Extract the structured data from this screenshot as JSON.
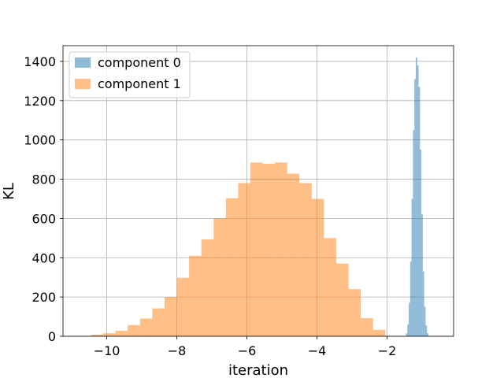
{
  "chart_data": {
    "type": "bar",
    "title": "",
    "xlabel": "iteration",
    "ylabel": "KL",
    "xlim": [
      -11.25,
      -0.1
    ],
    "ylim": [
      0,
      1480
    ],
    "x_ticks": [
      -10,
      -8,
      -6,
      -4,
      -2
    ],
    "x_tick_labels": [
      "−10",
      "−8",
      "−6",
      "−4",
      "−2"
    ],
    "y_ticks": [
      0,
      200,
      400,
      600,
      800,
      1000,
      1200,
      1400
    ],
    "y_tick_labels": [
      "0",
      "200",
      "400",
      "600",
      "800",
      "1000",
      "1200",
      "1400"
    ],
    "grid": true,
    "legend": "top-left",
    "series": [
      {
        "name": "component 0",
        "color": "#1f77b4",
        "opacity": 0.5,
        "bin_edges": [
          -1.46,
          -1.42,
          -1.38,
          -1.34,
          -1.3,
          -1.26,
          -1.22,
          -1.18,
          -1.14,
          -1.1,
          -1.06,
          -1.02,
          -0.98,
          -0.94,
          -0.9,
          -0.86,
          -0.82
        ],
        "counts": [
          15,
          60,
          170,
          380,
          700,
          1050,
          1310,
          1420,
          1380,
          1270,
          950,
          620,
          330,
          150,
          55,
          15
        ]
      },
      {
        "name": "component 1",
        "color": "#ff7f0e",
        "opacity": 0.5,
        "bin_edges": [
          -10.45,
          -10.1,
          -9.75,
          -9.4,
          -9.05,
          -8.7,
          -8.35,
          -8.0,
          -7.65,
          -7.3,
          -6.95,
          -6.6,
          -6.25,
          -5.9,
          -5.55,
          -5.2,
          -4.85,
          -4.5,
          -4.15,
          -3.8,
          -3.45,
          -3.1,
          -2.75,
          -2.4,
          -2.05
        ],
        "counts": [
          8,
          15,
          28,
          57,
          90,
          142,
          200,
          298,
          410,
          493,
          600,
          703,
          780,
          885,
          878,
          885,
          828,
          780,
          700,
          500,
          370,
          240,
          92,
          32
        ]
      }
    ]
  }
}
